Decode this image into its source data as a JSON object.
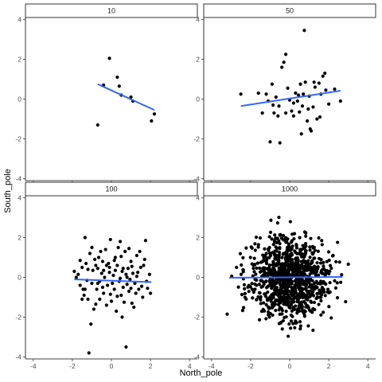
{
  "chart_data": {
    "type": "scatter",
    "facet_layout": "2x2 grid",
    "xlabel": "North_pole",
    "ylabel": "South_pole",
    "xlim": [
      -4.4,
      4.4
    ],
    "ylim": [
      -4.1,
      4.1
    ],
    "xticks": [
      -4,
      -2,
      0,
      2,
      4
    ],
    "yticks": [
      -4,
      -2,
      0,
      2,
      4
    ],
    "grid": false,
    "legend": "none",
    "colors": {
      "points": "#000000",
      "fit_line": "#3366ff",
      "strip_border": "#333333",
      "axis": "#000000",
      "tick_text": "#4d4d4d"
    },
    "panels": [
      {
        "strip": "10",
        "points": [
          [
            -0.7,
            -1.3
          ],
          [
            -0.4,
            0.7
          ],
          [
            -0.1,
            2.05
          ],
          [
            0.3,
            1.1
          ],
          [
            0.4,
            0.65
          ],
          [
            0.5,
            0.2
          ],
          [
            1.0,
            0.1
          ],
          [
            1.1,
            -0.1
          ],
          [
            2.05,
            -1.1
          ],
          [
            2.2,
            -0.75
          ]
        ],
        "fit": {
          "x": [
            -0.7,
            2.2
          ],
          "y": [
            0.75,
            -0.55
          ]
        }
      },
      {
        "strip": "50",
        "points": [
          [
            -2.5,
            0.25
          ],
          [
            -1.6,
            0.3
          ],
          [
            -1.2,
            0.25
          ],
          [
            -1.1,
            -0.1
          ],
          [
            -0.9,
            0.75
          ],
          [
            -0.8,
            -0.7
          ],
          [
            -0.7,
            0.1
          ],
          [
            -0.6,
            -0.85
          ],
          [
            -0.4,
            1.6
          ],
          [
            -0.5,
            -2.2
          ],
          [
            -0.3,
            1.85
          ],
          [
            -0.2,
            2.25
          ],
          [
            -0.1,
            0.55
          ],
          [
            0.0,
            -0.05
          ],
          [
            0.1,
            -0.6
          ],
          [
            0.2,
            -0.85
          ],
          [
            0.3,
            0.3
          ],
          [
            0.4,
            -0.1
          ],
          [
            0.5,
            -0.65
          ],
          [
            0.55,
            0.75
          ],
          [
            0.6,
            -1.75
          ],
          [
            0.7,
            0.25
          ],
          [
            0.8,
            0.85
          ],
          [
            0.9,
            -1.1
          ],
          [
            1.0,
            0.15
          ],
          [
            1.1,
            -1.6
          ],
          [
            1.2,
            -0.4
          ],
          [
            1.3,
            0.6
          ],
          [
            1.4,
            -1.0
          ],
          [
            1.5,
            0.8
          ],
          [
            1.6,
            0.25
          ],
          [
            1.7,
            1.15
          ],
          [
            1.8,
            1.3
          ],
          [
            2.0,
            -0.25
          ],
          [
            2.3,
            0.5
          ],
          [
            2.6,
            -0.1
          ],
          [
            0.75,
            3.45
          ],
          [
            -1.4,
            -0.7
          ],
          [
            -1.0,
            -2.15
          ],
          [
            0.2,
            -0.2
          ],
          [
            -0.2,
            -0.7
          ],
          [
            0.45,
            0.2
          ],
          [
            1.05,
            -1.5
          ],
          [
            0.95,
            -0.5
          ],
          [
            1.85,
            0.45
          ],
          [
            -0.55,
            -0.35
          ],
          [
            1.25,
            0.85
          ],
          [
            -0.85,
            -0.3
          ],
          [
            0.65,
            -0.35
          ],
          [
            1.55,
            -0.9
          ]
        ],
        "fit": {
          "x": [
            -2.5,
            2.6
          ],
          "y": [
            -0.35,
            0.42
          ]
        }
      },
      {
        "strip": "100",
        "points": [
          [
            -1.9,
            0.3
          ],
          [
            -1.8,
            0.0
          ],
          [
            -1.6,
            -0.4
          ],
          [
            -1.5,
            0.5
          ],
          [
            -1.4,
            -0.9
          ],
          [
            -1.35,
            2.0
          ],
          [
            -1.3,
            0.7
          ],
          [
            -1.2,
            -1.1
          ],
          [
            -1.1,
            1.2
          ],
          [
            -1.0,
            -0.3
          ],
          [
            -1.0,
            1.5
          ],
          [
            -0.9,
            -1.6
          ],
          [
            -0.8,
            0.6
          ],
          [
            -0.7,
            -0.3
          ],
          [
            -0.65,
            1.0
          ],
          [
            -0.6,
            -1.1
          ],
          [
            -0.5,
            0.2
          ],
          [
            -0.45,
            0.8
          ],
          [
            -0.4,
            -0.8
          ],
          [
            -0.3,
            1.4
          ],
          [
            -0.2,
            -0.4
          ],
          [
            -0.1,
            0.5
          ],
          [
            -0.05,
            1.9
          ],
          [
            0.0,
            -1.2
          ],
          [
            0.1,
            0.1
          ],
          [
            0.15,
            -0.6
          ],
          [
            0.2,
            1.0
          ],
          [
            0.25,
            -1.7
          ],
          [
            0.3,
            0.6
          ],
          [
            0.4,
            -0.2
          ],
          [
            0.45,
            1.8
          ],
          [
            0.5,
            -0.9
          ],
          [
            0.55,
            0.3
          ],
          [
            0.6,
            -0.5
          ],
          [
            0.7,
            1.3
          ],
          [
            0.75,
            -3.5
          ],
          [
            0.8,
            0.0
          ],
          [
            0.9,
            -0.7
          ],
          [
            1.0,
            0.8
          ],
          [
            1.05,
            -1.3
          ],
          [
            1.1,
            0.2
          ],
          [
            1.2,
            -0.3
          ],
          [
            1.3,
            1.1
          ],
          [
            1.4,
            -0.6
          ],
          [
            1.5,
            0.5
          ],
          [
            1.6,
            -1.0
          ],
          [
            1.7,
            0.9
          ],
          [
            1.75,
            1.85
          ],
          [
            1.8,
            -0.2
          ],
          [
            2.0,
            -0.8
          ],
          [
            -1.15,
            -3.8
          ],
          [
            -1.5,
            -1.1
          ],
          [
            -1.25,
            -0.15
          ],
          [
            -0.95,
            0.35
          ],
          [
            -0.75,
            -0.6
          ],
          [
            -0.55,
            1.3
          ],
          [
            -0.35,
            0.0
          ],
          [
            -0.25,
            -1.4
          ],
          [
            -0.15,
            0.7
          ],
          [
            0.05,
            -0.3
          ],
          [
            0.35,
            1.5
          ],
          [
            0.65,
            -1.25
          ],
          [
            0.85,
            0.45
          ],
          [
            0.95,
            -0.1
          ],
          [
            1.15,
            -1.5
          ],
          [
            1.35,
            0.25
          ],
          [
            1.55,
            -0.45
          ],
          [
            1.65,
            0.6
          ],
          [
            1.85,
            -0.55
          ],
          [
            -1.7,
            0.15
          ],
          [
            -1.45,
            -0.6
          ],
          [
            -1.05,
            -2.35
          ],
          [
            -0.85,
            0.9
          ],
          [
            -0.6,
            -0.2
          ],
          [
            -0.4,
            0.35
          ],
          [
            -0.05,
            -0.85
          ],
          [
            0.15,
            0.85
          ],
          [
            0.45,
            -0.05
          ],
          [
            0.55,
            -2.0
          ],
          [
            0.75,
            0.15
          ],
          [
            1.05,
            0.55
          ],
          [
            1.25,
            -0.8
          ],
          [
            1.45,
            1.3
          ],
          [
            1.95,
            0.15
          ],
          [
            -1.6,
            0.85
          ],
          [
            -1.2,
            0.4
          ],
          [
            -0.8,
            -1.35
          ],
          [
            -0.45,
            -0.5
          ],
          [
            -0.1,
            0.25
          ],
          [
            0.2,
            0.35
          ],
          [
            0.5,
            1.05
          ],
          [
            0.8,
            -0.35
          ],
          [
            1.0,
            -0.55
          ],
          [
            1.3,
            0.05
          ],
          [
            -1.35,
            -0.6
          ],
          [
            -0.7,
            0.45
          ],
          [
            0.3,
            -0.95
          ],
          [
            0.9,
            1.45
          ],
          [
            -0.25,
            0.6
          ],
          [
            0.6,
            0.45
          ]
        ],
        "fit": {
          "x": [
            -1.9,
            2.05
          ],
          "y": [
            -0.1,
            -0.24
          ]
        }
      },
      {
        "strip": "1000",
        "point_count": 1000,
        "sample_seed": 1000,
        "points": [],
        "fit": {
          "x": [
            -3.1,
            2.7
          ],
          "y": [
            -0.02,
            0.02
          ]
        }
      }
    ]
  }
}
